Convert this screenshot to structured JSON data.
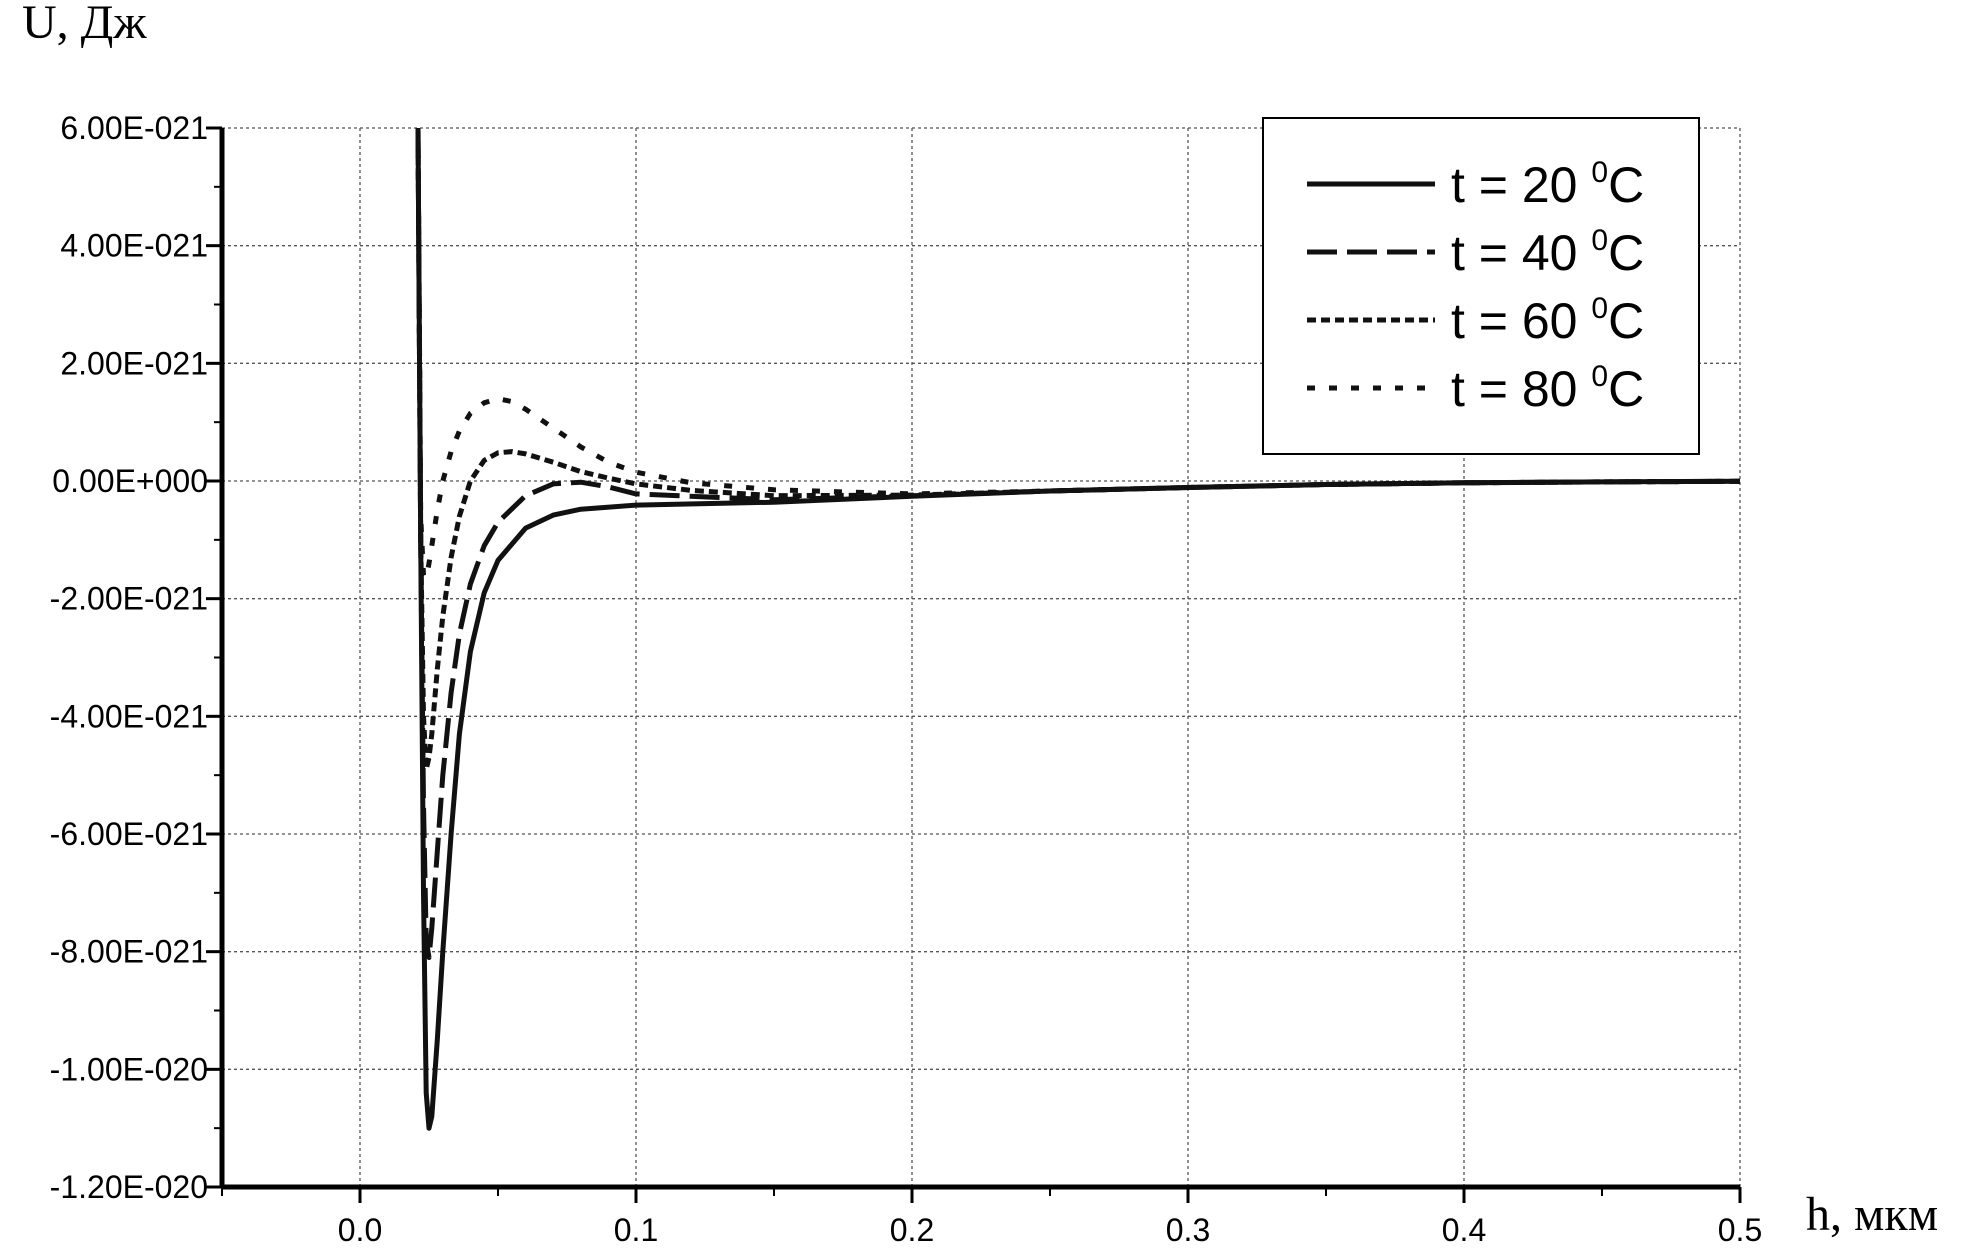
{
  "chart_data": {
    "type": "line",
    "title": "",
    "xlabel": "h, мкм",
    "ylabel": "U, Дж",
    "xlim": [
      -0.05,
      0.5
    ],
    "ylim": [
      -1.2e-20,
      6e-21
    ],
    "grid": true,
    "legend_position": "top-right",
    "x_ticks": [
      0.0,
      0.1,
      0.2,
      0.3,
      0.4,
      0.5
    ],
    "x_tick_labels": [
      "0.0",
      "0.1",
      "0.2",
      "0.3",
      "0.4",
      "0.5"
    ],
    "y_ticks": [
      6e-21,
      4e-21,
      2e-21,
      0,
      -2e-21,
      -4e-21,
      -6e-21,
      -8e-21,
      -1e-20,
      -1.2e-20
    ],
    "y_tick_labels": [
      "6.00E-021",
      "4.00E-021",
      "2.00E-021",
      "0.00E+000",
      "-2.00E-021",
      "-4.00E-021",
      "-6.00E-021",
      "-8.00E-021",
      "-1.00E-020",
      "-1.20E-020"
    ],
    "series": [
      {
        "name": "t = 20",
        "name_sup": "0",
        "name_unit": "C",
        "style": "solid",
        "x": [
          0.021,
          0.022,
          0.023,
          0.024,
          0.025,
          0.026,
          0.028,
          0.03,
          0.033,
          0.036,
          0.04,
          0.045,
          0.05,
          0.06,
          0.07,
          0.08,
          0.1,
          0.15,
          0.2,
          0.25,
          0.3,
          0.35,
          0.4,
          0.45,
          0.5
        ],
        "y": [
          6e-21,
          -1e-21,
          -7e-21,
          -1.04e-20,
          -1.1e-20,
          -1.08e-20,
          -9.5e-21,
          -8e-21,
          -6e-21,
          -4.3e-21,
          -2.9e-21,
          -1.9e-21,
          -1.35e-21,
          -8e-22,
          -5.8e-22,
          -4.8e-22,
          -4.1e-22,
          -3.6e-22,
          -2.6e-22,
          -1.7e-22,
          -1.1e-22,
          -6e-23,
          -3e-23,
          -1.5e-23,
          -5e-24
        ]
      },
      {
        "name": "t = 40",
        "name_sup": "0",
        "name_unit": "C",
        "style": "long-dash",
        "x": [
          0.021,
          0.022,
          0.023,
          0.024,
          0.025,
          0.026,
          0.028,
          0.03,
          0.033,
          0.036,
          0.04,
          0.045,
          0.05,
          0.06,
          0.07,
          0.08,
          0.09,
          0.1,
          0.15,
          0.2,
          0.25,
          0.3,
          0.35,
          0.4,
          0.45,
          0.5
        ],
        "y": [
          6e-21,
          -1e-21,
          -5.5e-21,
          -7.8e-21,
          -8.1e-21,
          -7.6e-21,
          -6.3e-21,
          -5e-21,
          -3.6e-21,
          -2.6e-21,
          -1.75e-21,
          -1.1e-21,
          -7e-22,
          -2.5e-22,
          -5e-23,
          -2e-23,
          -1e-22,
          -2.2e-22,
          -3.2e-22,
          -2.5e-22,
          -1.7e-22,
          -1.1e-22,
          -6e-23,
          -3e-23,
          -1.5e-23,
          -5e-24
        ]
      },
      {
        "name": "t = 60",
        "name_sup": "0",
        "name_unit": "C",
        "style": "short-dash",
        "x": [
          0.021,
          0.022,
          0.023,
          0.024,
          0.025,
          0.026,
          0.028,
          0.03,
          0.033,
          0.036,
          0.04,
          0.045,
          0.05,
          0.055,
          0.06,
          0.07,
          0.08,
          0.09,
          0.1,
          0.12,
          0.15,
          0.2,
          0.25,
          0.3,
          0.35,
          0.4,
          0.45,
          0.5
        ],
        "y": [
          6e-21,
          -1e-21,
          -4e-21,
          -4.9e-21,
          -4.7e-21,
          -4.3e-21,
          -3.2e-21,
          -2.3e-21,
          -1.3e-21,
          -6e-22,
          0,
          3.5e-22,
          4.8e-22,
          5e-22,
          4.6e-22,
          3.2e-22,
          1.6e-22,
          5e-23,
          -5e-23,
          -1.6e-22,
          -2.5e-22,
          -2.4e-22,
          -1.7e-22,
          -1.1e-22,
          -6e-23,
          -3e-23,
          -1.5e-23,
          -5e-24
        ]
      },
      {
        "name": "t = 80",
        "name_sup": "0",
        "name_unit": "C",
        "style": "dotted",
        "x": [
          0.021,
          0.022,
          0.023,
          0.024,
          0.025,
          0.026,
          0.028,
          0.03,
          0.033,
          0.036,
          0.04,
          0.045,
          0.05,
          0.055,
          0.06,
          0.07,
          0.08,
          0.09,
          0.1,
          0.12,
          0.15,
          0.2,
          0.25,
          0.3,
          0.35,
          0.4,
          0.45,
          0.5
        ],
        "y": [
          6e-21,
          -6e-22,
          -1.6e-21,
          -1.65e-21,
          -1.4e-21,
          -1.1e-21,
          -5e-22,
          0,
          5e-22,
          8.5e-22,
          1.15e-21,
          1.33e-21,
          1.4e-21,
          1.35e-21,
          1.22e-21,
          9e-22,
          5.8e-22,
          3.2e-22,
          1.5e-22,
          -3e-23,
          -1.5e-22,
          -2.2e-22,
          -1.7e-22,
          -1.1e-22,
          -6e-23,
          -3e-23,
          -1.5e-23,
          -5e-24
        ]
      }
    ]
  }
}
